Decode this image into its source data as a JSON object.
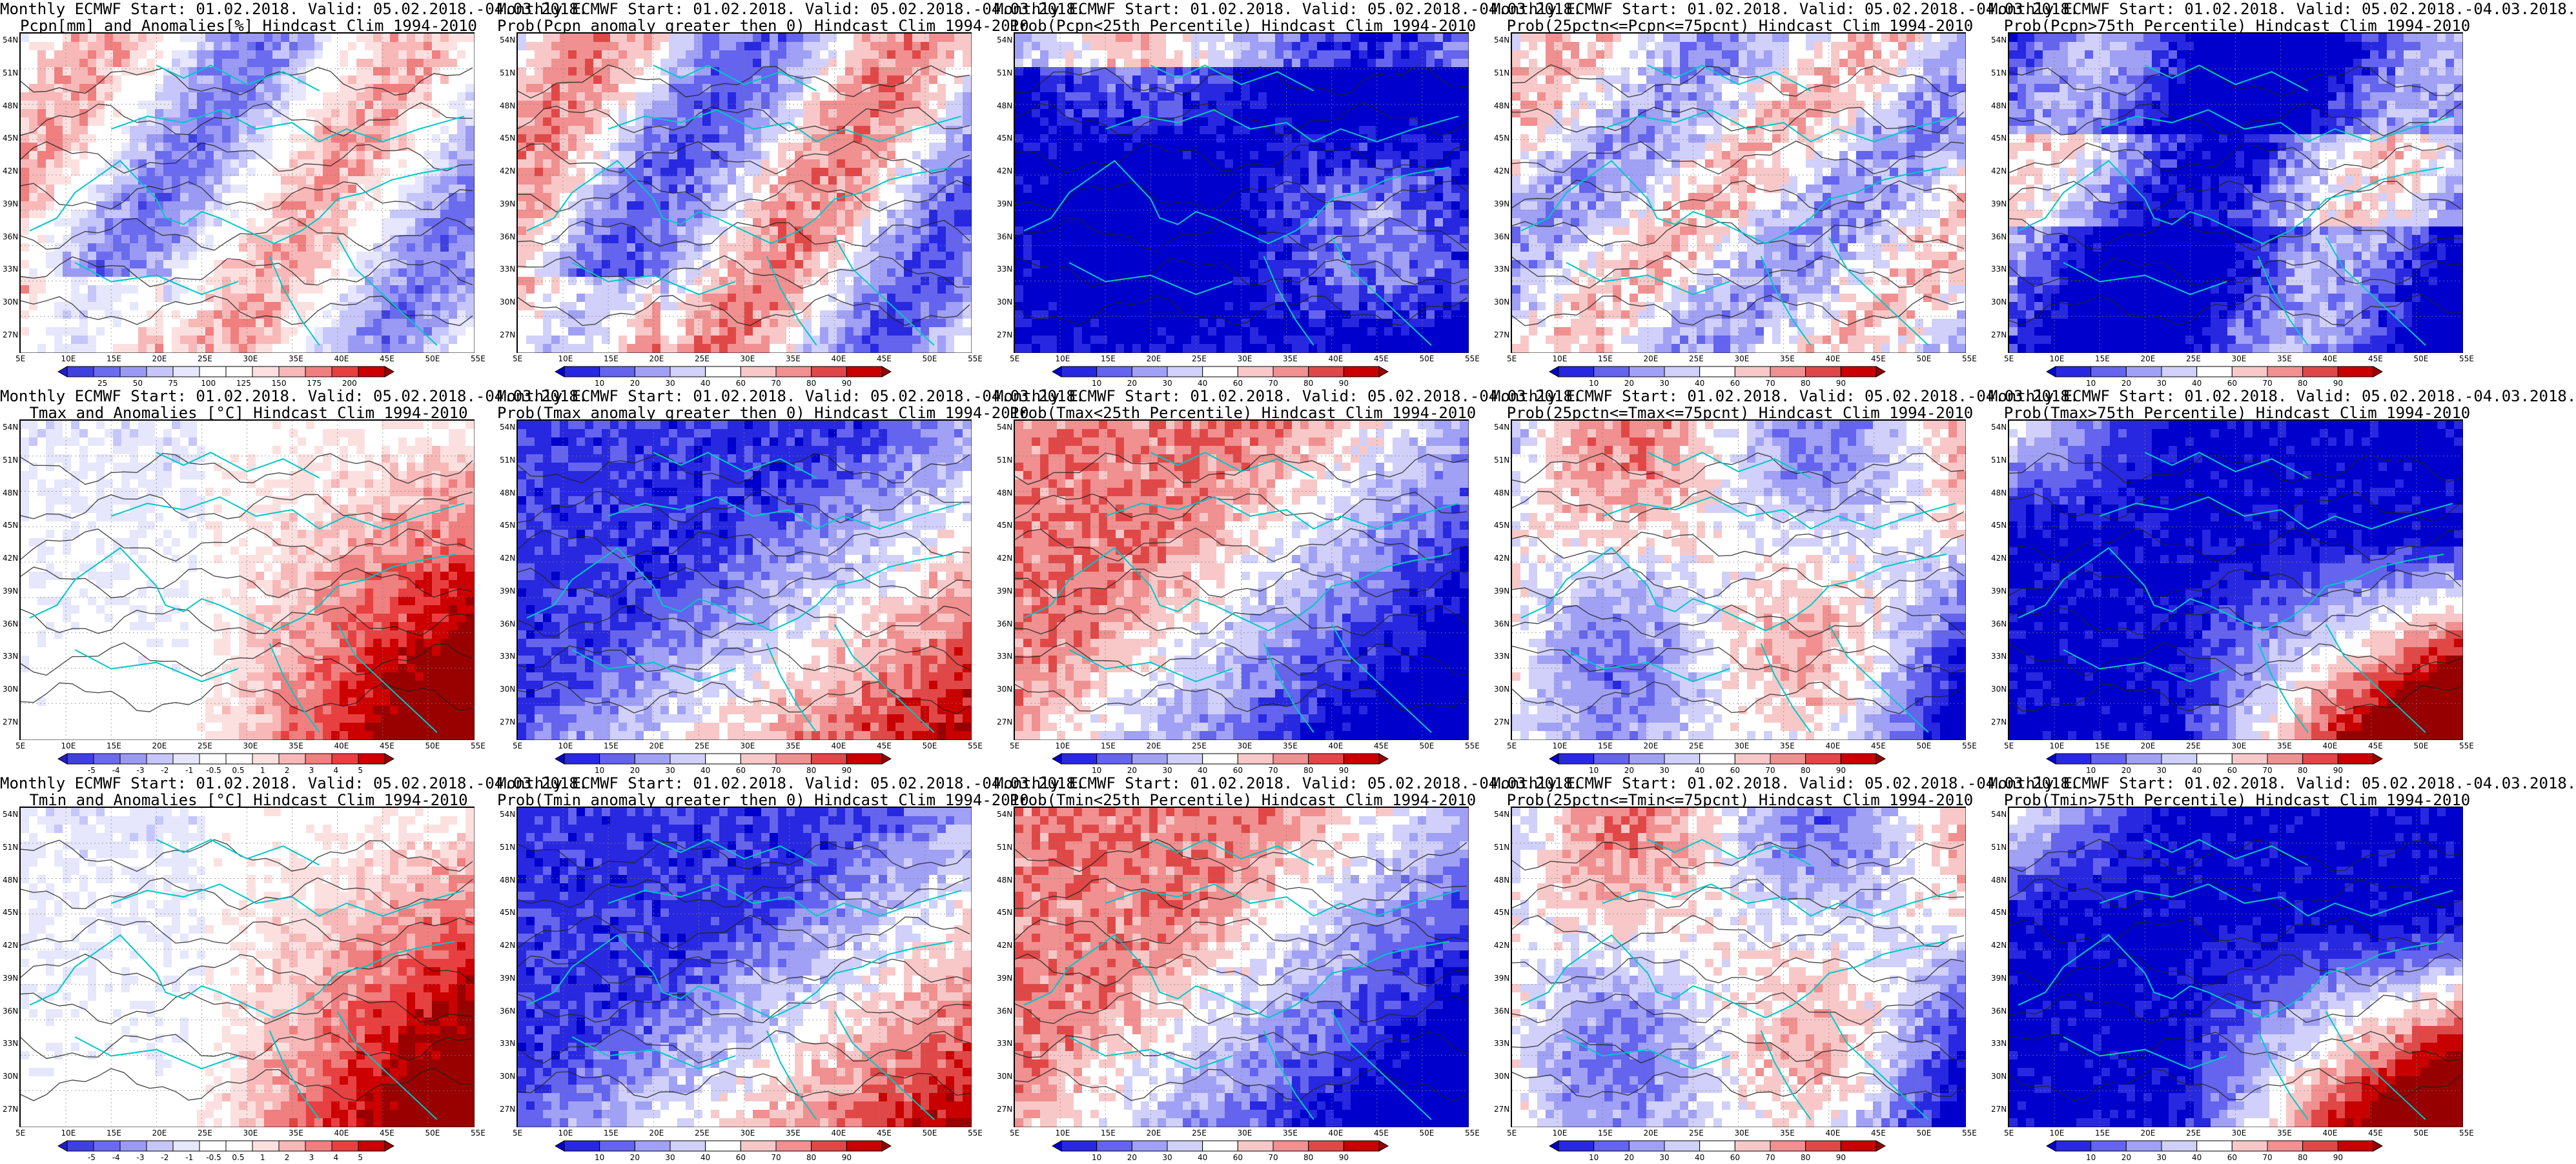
{
  "colors": {
    "ocean": "#1e1ecc",
    "coast": "#00c8c8",
    "contour": "#202020",
    "grid": "#808080"
  },
  "lat_labels": [
    "54N",
    "51N",
    "48N",
    "45N",
    "42N",
    "39N",
    "36N",
    "33N",
    "30N",
    "27N"
  ],
  "lon_labels": [
    "5E",
    "10E",
    "15E",
    "20E",
    "25E",
    "30E",
    "35E",
    "40E",
    "45E",
    "50E",
    "55E"
  ],
  "palettes": {
    "anom": [
      "#1e1ecc",
      "#4040e0",
      "#6b6bf0",
      "#9a9af5",
      "#c6c6fa",
      "#e6e6fc",
      "#ffffff",
      "#ffffff",
      "#fce0e0",
      "#f8b8b8",
      "#f07f7f",
      "#e84040",
      "#cc0000",
      "#990000"
    ],
    "prob": [
      "#0000cc",
      "#2828e0",
      "#6464ee",
      "#a0a0f5",
      "#d0d0fa",
      "#ffffff",
      "#f8c8c8",
      "#f09090",
      "#e04848",
      "#c80000",
      "#960000"
    ]
  },
  "colorbars": {
    "pcpn": [
      "25",
      "50",
      "75",
      "100",
      "125",
      "150",
      "175",
      "200"
    ],
    "temp": [
      "-5",
      "-4",
      "-3",
      "-2",
      "-1",
      "-0.5",
      "0.5",
      "1",
      "2",
      "3",
      "4",
      "5"
    ],
    "prob": [
      "10",
      "20",
      "30",
      "40",
      "60",
      "70",
      "80",
      "90"
    ]
  },
  "panels": [
    {
      "name": "pcpn-anomaly",
      "title1": "Monthly ECMWF Start: 01.02.2018. Valid: 05.02.2018.-04.03.2018.",
      "title2": "Pcpn[mm] and Anomalies[%] Hindcast Clim 1994-2010",
      "colorbar": "pcpn",
      "palette": "anom",
      "pattern": "pcpn"
    },
    {
      "name": "prob-pcpn-gt0",
      "title1": "Monthly ECMWF Start: 01.02.2018. Valid: 05.02.2018.-04.03.2018.",
      "title2": "Prob(Pcpn anomaly greater then 0) Hindcast Clim 1994-2010",
      "colorbar": "prob",
      "palette": "prob",
      "pattern": "pcpn"
    },
    {
      "name": "prob-pcpn-lt25",
      "title1": "Monthly ECMWF Start: 01.02.2018. Valid: 05.02.2018.-04.03.2018.",
      "title2": "Prob(Pcpn<25th Percentile) Hindcast Clim 1994-2010",
      "colorbar": "prob",
      "palette": "prob",
      "pattern": "low"
    },
    {
      "name": "prob-pcpn-mid",
      "title1": "Monthly ECMWF Start: 01.02.2018. Valid: 05.02.2018.-04.03.2018.",
      "title2": "Prob(25pctn<=Pcpn<=75pcnt) Hindcast Clim 1994-2010",
      "colorbar": "prob",
      "palette": "prob",
      "pattern": "mid"
    },
    {
      "name": "prob-pcpn-gt75",
      "title1": "Monthly ECMWF Start: 01.02.2018. Valid: 05.02.2018.-04.03.2018.",
      "title2": "Prob(Pcpn>75th Percentile) Hindcast Clim 1994-2010",
      "colorbar": "prob",
      "palette": "prob",
      "pattern": "highp"
    },
    {
      "name": "tmax-anomaly",
      "title1": "Monthly ECMWF Start: 01.02.2018. Valid: 05.02.2018.-04.03.2018.",
      "title2": "Tmax and Anomalies [°C] Hindcast Clim 1994-2010",
      "colorbar": "temp",
      "palette": "anom",
      "pattern": "temp"
    },
    {
      "name": "prob-tmax-gt0",
      "title1": "Monthly ECMWF Start: 01.02.2018. Valid: 05.02.2018.-04.03.2018.",
      "title2": "Prob(Tmax anomaly greater then 0) Hindcast Clim 1994-2010",
      "colorbar": "prob",
      "palette": "prob",
      "pattern": "tprob"
    },
    {
      "name": "prob-tmax-lt25",
      "title1": "Monthly ECMWF Start: 01.02.2018. Valid: 05.02.2018.-04.03.2018.",
      "title2": "Prob(Tmax<25th Percentile) Hindcast Clim 1994-2010",
      "colorbar": "prob",
      "palette": "prob",
      "pattern": "tlow"
    },
    {
      "name": "prob-tmax-mid",
      "title1": "Monthly ECMWF Start: 01.02.2018. Valid: 05.02.2018.-04.03.2018.",
      "title2": "Prob(25pctn<=Tmax<=75pcnt) Hindcast Clim 1994-2010",
      "colorbar": "prob",
      "palette": "prob",
      "pattern": "tmid"
    },
    {
      "name": "prob-tmax-gt75",
      "title1": "Monthly ECMWF Start: 01.02.2018. Valid: 05.02.2018.-04.03.2018.",
      "title2": "Prob(Tmax>75th Percentile) Hindcast Clim 1994-2010",
      "colorbar": "prob",
      "palette": "prob",
      "pattern": "thigh"
    },
    {
      "name": "tmin-anomaly",
      "title1": "Monthly ECMWF Start: 01.02.2018. Valid: 05.02.2018.-04.03.2018.",
      "title2": "Tmin and Anomalies [°C] Hindcast Clim 1994-2010",
      "colorbar": "temp",
      "palette": "anom",
      "pattern": "temp"
    },
    {
      "name": "prob-tmin-gt0",
      "title1": "Monthly ECMWF Start: 01.02.2018. Valid: 05.02.2018.-04.03.2018.",
      "title2": "Prob(Tmin anomaly greater then 0) Hindcast Clim 1994-2010",
      "colorbar": "prob",
      "palette": "prob",
      "pattern": "tprob"
    },
    {
      "name": "prob-tmin-lt25",
      "title1": "Monthly ECMWF Start: 01.02.2018. Valid: 05.02.2018.-04.03.2018.",
      "title2": "Prob(Tmin<25th Percentile) Hindcast Clim 1994-2010",
      "colorbar": "prob",
      "palette": "prob",
      "pattern": "tlow"
    },
    {
      "name": "prob-tmin-mid",
      "title1": "Monthly ECMWF Start: 01.02.2018. Valid: 05.02.2018.-04.03.2018.",
      "title2": "Prob(25pctn<=Tmin<=75pcnt) Hindcast Clim 1994-2010",
      "colorbar": "prob",
      "palette": "prob",
      "pattern": "tmid"
    },
    {
      "name": "prob-tmin-gt75",
      "title1": "Monthly ECMWF Start: 01.02.2018. Valid: 05.02.2018.-04.03.2018.",
      "title2": "Prob(Tmin>75th Percentile) Hindcast Clim 1994-2010",
      "colorbar": "prob",
      "palette": "prob",
      "pattern": "thigh"
    }
  ]
}
